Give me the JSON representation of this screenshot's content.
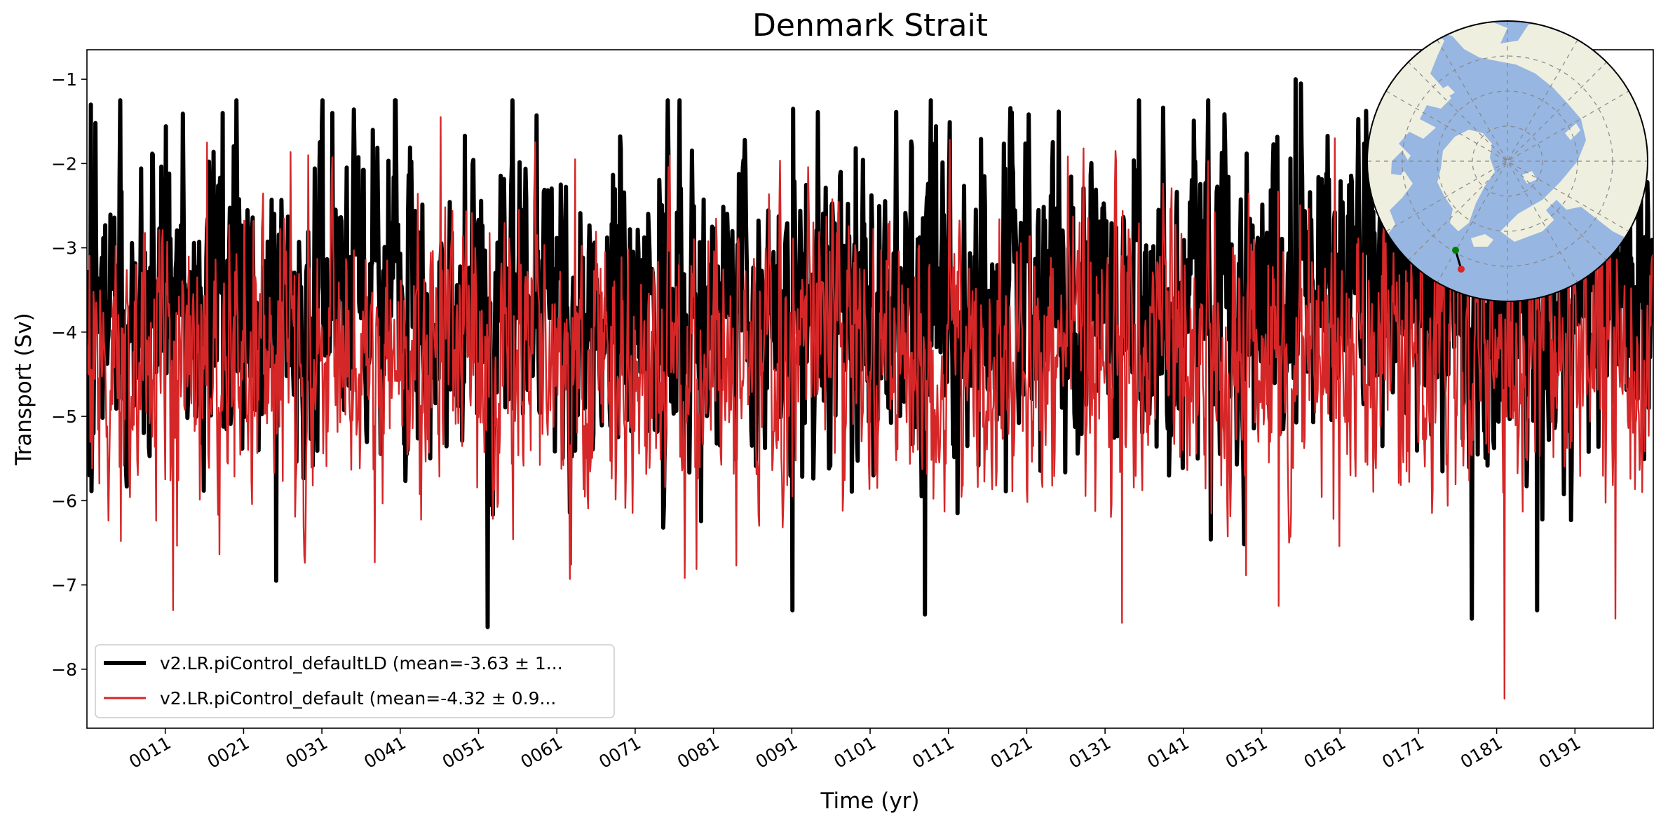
{
  "chart_data": {
    "type": "line",
    "title": "Denmark Strait",
    "xlabel": "Time (yr)",
    "ylabel": "Transport (Sv)",
    "xlim": [
      1,
      201
    ],
    "ylim": [
      -8.7,
      -0.65
    ],
    "yticks": [
      -1,
      -2,
      -3,
      -4,
      -5,
      -6,
      -7,
      -8
    ],
    "ytick_labels": [
      "−1",
      "−2",
      "−3",
      "−4",
      "−5",
      "−6",
      "−7",
      "−8"
    ],
    "xticks": [
      11,
      21,
      31,
      41,
      51,
      61,
      71,
      81,
      91,
      101,
      111,
      121,
      131,
      141,
      151,
      161,
      171,
      181,
      191
    ],
    "xtick_labels": [
      "0011",
      "0021",
      "0031",
      "0041",
      "0051",
      "0061",
      "0071",
      "0081",
      "0091",
      "0101",
      "0111",
      "0121",
      "0131",
      "0141",
      "0151",
      "0161",
      "0171",
      "0181",
      "0191"
    ],
    "legend_position": "lower-left",
    "series": [
      {
        "name": "v2.LR.piControl_defaultLD (mean=-3.63 ± 1...",
        "color": "#000000",
        "mean": -3.63,
        "std": 1.0,
        "samples_per_year": 12,
        "min": -7.5,
        "max": -1.0,
        "extremes": [
          [
            1.5,
            -1.3
          ],
          [
            18.3,
            -1.4
          ],
          [
            25.2,
            -6.95
          ],
          [
            32.3,
            -1.4
          ],
          [
            52.2,
            -7.5
          ],
          [
            91.2,
            -1.35
          ],
          [
            91.1,
            -7.3
          ],
          [
            108.0,
            -7.35
          ],
          [
            155.3,
            -1.0
          ],
          [
            156.0,
            -1.05
          ],
          [
            177.8,
            -7.4
          ],
          [
            186.2,
            -7.3
          ]
        ]
      },
      {
        "name": "v2.LR.piControl_default (mean=-4.32 ± 0.9...",
        "color": "#d62728",
        "mean": -4.32,
        "std": 0.9,
        "samples_per_year": 12,
        "min": -8.35,
        "max": -1.45,
        "extremes": [
          [
            12.0,
            -7.3
          ],
          [
            16.3,
            -1.75
          ],
          [
            46.2,
            -1.45
          ],
          [
            63.3,
            -1.95
          ],
          [
            133.2,
            -7.45
          ],
          [
            153.2,
            -7.25
          ],
          [
            182.0,
            -8.35
          ],
          [
            196.2,
            -7.4
          ]
        ]
      }
    ]
  },
  "inset_map": {
    "projection": "north-polar-stereographic",
    "land_color": "#efefdf",
    "ocean_color": "#97b6e1",
    "section_start_color": "#008000",
    "section_end_color": "#d62728"
  }
}
